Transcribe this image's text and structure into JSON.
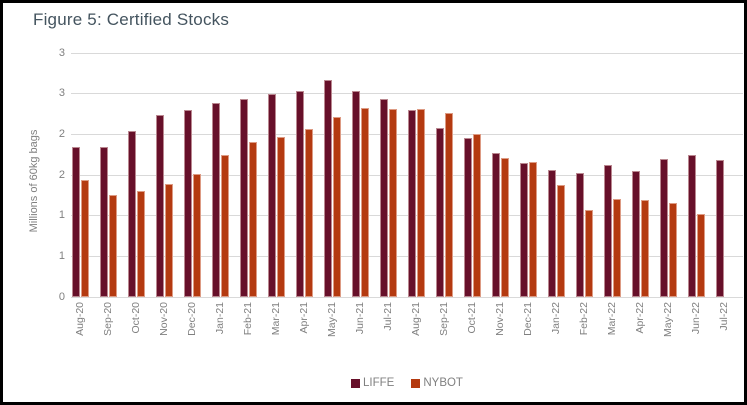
{
  "figure": {
    "title": "Figure 5: Certified Stocks"
  },
  "colors": {
    "background": "#ffffff",
    "frame_border": "#000000",
    "title_text": "#44545f",
    "axis_text": "#808080",
    "gridline": "#d9d9d9",
    "liffe": "#67102a",
    "nybot": "#b43a10"
  },
  "chart_data": {
    "type": "bar",
    "title": "Figure 5: Certified Stocks",
    "xlabel": "",
    "ylabel": "Millions of 60kg bags",
    "ylim": [
      0,
      3
    ],
    "grid": "horizontal",
    "legend_position": "bottom",
    "yticks": [
      {
        "value": 0,
        "label": "0"
      },
      {
        "value": 0.5,
        "label": "1"
      },
      {
        "value": 1,
        "label": "1"
      },
      {
        "value": 1.5,
        "label": "2"
      },
      {
        "value": 2,
        "label": "2"
      },
      {
        "value": 2.5,
        "label": "3"
      },
      {
        "value": 3,
        "label": "3"
      }
    ],
    "categories": [
      "Aug-20",
      "Sep-20",
      "Oct-20",
      "Nov-20",
      "Dec-20",
      "Jan-21",
      "Feb-21",
      "Mar-21",
      "Apr-21",
      "May-21",
      "Jun-21",
      "Jul-21",
      "Aug-21",
      "Sep-21",
      "Oct-21",
      "Nov-21",
      "Dec-21",
      "Jan-22",
      "Feb-22",
      "Mar-22",
      "Apr-22",
      "May-22",
      "Jun-22",
      "Jul-22"
    ],
    "series": [
      {
        "name": "LIFFE",
        "color": "#67102a",
        "values": [
          1.85,
          1.85,
          2.04,
          2.24,
          2.3,
          2.39,
          2.43,
          2.5,
          2.53,
          2.67,
          2.53,
          2.43,
          2.3,
          2.08,
          1.96,
          1.77,
          1.65,
          1.56,
          1.53,
          1.62,
          1.55,
          1.7,
          1.75,
          1.69
        ]
      },
      {
        "name": "NYBOT",
        "color": "#b43a10",
        "values": [
          1.44,
          1.26,
          1.3,
          1.39,
          1.51,
          1.74,
          1.91,
          1.97,
          2.07,
          2.21,
          2.33,
          2.31,
          2.31,
          2.26,
          2.0,
          1.71,
          1.66,
          1.38,
          1.07,
          1.21,
          1.19,
          1.15,
          1.02,
          null
        ]
      }
    ]
  }
}
